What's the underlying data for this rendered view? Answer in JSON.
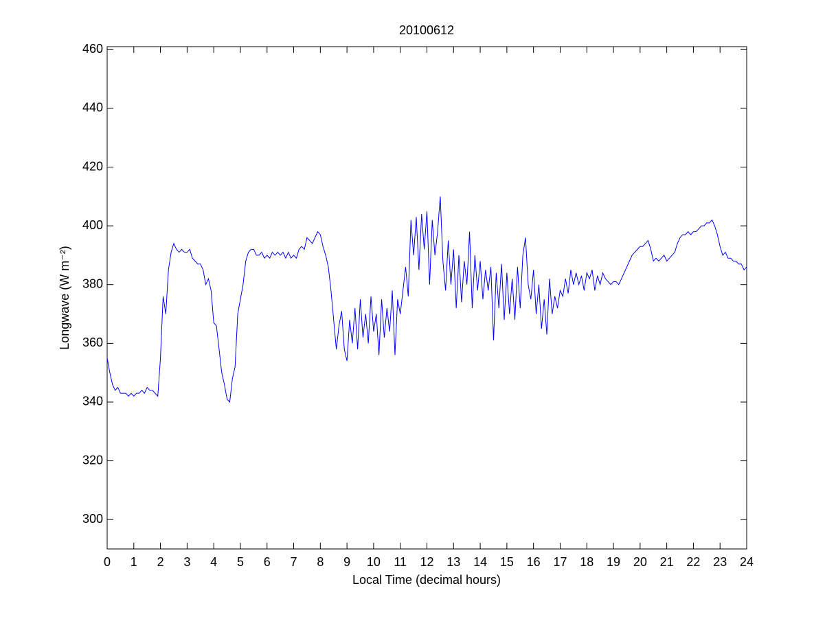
{
  "chart_data": {
    "type": "line",
    "title": "20100612",
    "xlabel": "Local Time (decimal hours)",
    "ylabel": "Longwave (W m⁻²)",
    "xlim": [
      0,
      24
    ],
    "ylim": [
      290,
      461
    ],
    "xticks": [
      0,
      1,
      2,
      3,
      4,
      5,
      6,
      7,
      8,
      9,
      10,
      11,
      12,
      13,
      14,
      15,
      16,
      17,
      18,
      19,
      20,
      21,
      22,
      23,
      24
    ],
    "yticks": [
      300,
      320,
      340,
      360,
      380,
      400,
      420,
      440,
      460
    ],
    "x": [
      0,
      0.1,
      0.2,
      0.3,
      0.4,
      0.5,
      0.6,
      0.7,
      0.8,
      0.9,
      1,
      1.1,
      1.2,
      1.3,
      1.4,
      1.5,
      1.6,
      1.7,
      1.8,
      1.9,
      2,
      2.1,
      2.2,
      2.3,
      2.4,
      2.5,
      2.6,
      2.7,
      2.8,
      2.9,
      3,
      3.1,
      3.2,
      3.3,
      3.4,
      3.5,
      3.6,
      3.7,
      3.8,
      3.9,
      4,
      4.1,
      4.2,
      4.3,
      4.4,
      4.5,
      4.6,
      4.7,
      4.8,
      4.9,
      5,
      5.1,
      5.2,
      5.3,
      5.4,
      5.5,
      5.6,
      5.7,
      5.8,
      5.9,
      6,
      6.1,
      6.2,
      6.3,
      6.4,
      6.5,
      6.6,
      6.7,
      6.8,
      6.9,
      7,
      7.1,
      7.2,
      7.3,
      7.4,
      7.5,
      7.6,
      7.7,
      7.8,
      7.9,
      8,
      8.1,
      8.2,
      8.3,
      8.4,
      8.5,
      8.6,
      8.7,
      8.8,
      8.9,
      9,
      9.1,
      9.2,
      9.3,
      9.4,
      9.5,
      9.6,
      9.7,
      9.8,
      9.9,
      10,
      10.1,
      10.2,
      10.3,
      10.4,
      10.5,
      10.6,
      10.7,
      10.8,
      10.9,
      11,
      11.1,
      11.2,
      11.3,
      11.4,
      11.5,
      11.6,
      11.7,
      11.8,
      11.9,
      12,
      12.1,
      12.2,
      12.3,
      12.4,
      12.5,
      12.6,
      12.7,
      12.8,
      12.9,
      13,
      13.1,
      13.2,
      13.3,
      13.4,
      13.5,
      13.6,
      13.7,
      13.8,
      13.9,
      14,
      14.1,
      14.2,
      14.3,
      14.4,
      14.5,
      14.6,
      14.7,
      14.8,
      14.9,
      15,
      15.1,
      15.2,
      15.3,
      15.4,
      15.5,
      15.6,
      15.7,
      15.8,
      15.9,
      16,
      16.1,
      16.2,
      16.3,
      16.4,
      16.5,
      16.6,
      16.7,
      16.8,
      16.9,
      17,
      17.1,
      17.2,
      17.3,
      17.4,
      17.5,
      17.6,
      17.7,
      17.8,
      17.9,
      18,
      18.1,
      18.2,
      18.3,
      18.4,
      18.5,
      18.6,
      18.7,
      18.8,
      18.9,
      19,
      19.1,
      19.2,
      19.3,
      19.4,
      19.5,
      19.6,
      19.7,
      19.8,
      19.9,
      20,
      20.1,
      20.2,
      20.3,
      20.4,
      20.5,
      20.6,
      20.7,
      20.8,
      20.9,
      21,
      21.1,
      21.2,
      21.3,
      21.4,
      21.5,
      21.6,
      21.7,
      21.8,
      21.9,
      22,
      22.1,
      22.2,
      22.3,
      22.4,
      22.5,
      22.6,
      22.7,
      22.8,
      22.9,
      23,
      23.1,
      23.2,
      23.3,
      23.4,
      23.5,
      23.6,
      23.7,
      23.8,
      23.9,
      24
    ],
    "series": [
      {
        "name": "Longwave",
        "color": "#0000ff",
        "values": [
          355,
          350,
          346,
          344,
          345,
          343,
          343,
          343,
          342,
          343,
          342,
          343,
          343,
          344,
          343,
          345,
          344,
          344,
          343,
          342,
          355,
          376,
          370,
          385,
          391,
          394,
          392,
          391,
          392,
          391,
          391,
          392,
          389,
          388,
          387,
          387,
          385,
          380,
          382,
          378,
          367,
          366,
          358,
          350,
          346,
          341,
          340,
          348,
          352,
          370,
          375,
          380,
          388,
          391,
          392,
          392,
          390,
          390,
          391,
          389,
          390,
          389,
          391,
          390,
          391,
          390,
          391,
          389,
          391,
          389,
          390,
          389,
          392,
          393,
          392,
          396,
          395,
          394,
          396,
          398,
          397,
          393,
          390,
          386,
          378,
          368,
          358,
          366,
          371,
          358,
          354,
          368,
          360,
          372,
          358,
          375,
          362,
          370,
          360,
          376,
          364,
          370,
          356,
          375,
          362,
          372,
          364,
          378,
          356,
          375,
          370,
          378,
          386,
          376,
          402,
          390,
          403,
          385,
          404,
          392,
          405,
          380,
          402,
          390,
          398,
          410,
          388,
          378,
          395,
          380,
          392,
          372,
          390,
          374,
          388,
          380,
          398,
          372,
          390,
          378,
          388,
          375,
          385,
          378,
          386,
          361,
          384,
          372,
          387,
          368,
          384,
          370,
          382,
          368,
          386,
          372,
          390,
          396,
          380,
          375,
          385,
          370,
          380,
          365,
          375,
          363,
          382,
          370,
          376,
          372,
          378,
          376,
          382,
          377,
          385,
          380,
          384,
          380,
          383,
          378,
          384,
          382,
          385,
          378,
          383,
          380,
          384,
          382,
          381,
          380,
          381,
          381,
          380,
          382,
          384,
          386,
          388,
          390,
          391,
          392,
          393,
          393,
          394,
          395,
          392,
          388,
          389,
          388,
          389,
          390,
          388,
          389,
          390,
          391,
          394,
          396,
          397,
          397,
          398,
          397,
          398,
          398,
          399,
          400,
          400,
          401,
          401,
          402,
          400,
          397,
          393,
          390,
          391,
          389,
          389,
          388,
          388,
          387,
          387,
          385,
          386
        ]
      }
    ]
  }
}
